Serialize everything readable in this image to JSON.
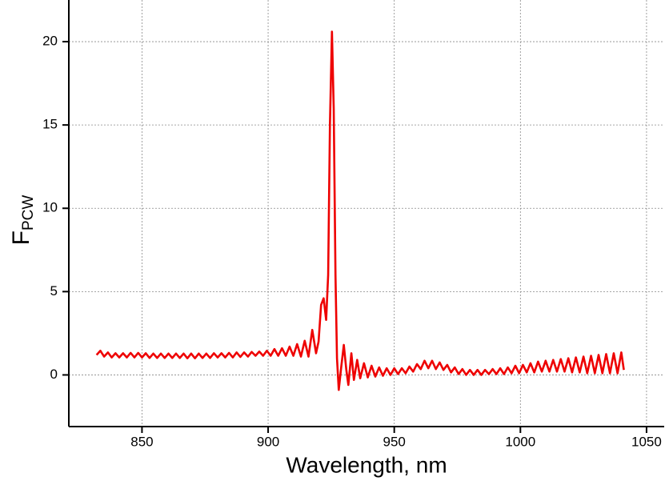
{
  "chart_data": {
    "type": "line",
    "xlabel": "Wavelength, nm",
    "ylabel": "F",
    "ylabel_sub": "PCW",
    "xlim": [
      821,
      1057
    ],
    "ylim": [
      -3.1,
      22.5
    ],
    "xticks": [
      850,
      900,
      950,
      1000,
      1050
    ],
    "yticks": [
      0,
      5,
      10,
      15,
      20
    ],
    "grid": true,
    "series": [
      {
        "color": "#ee0000",
        "x": [
          832,
          833.5,
          835,
          836.5,
          838,
          839.5,
          841,
          842.5,
          844,
          845.5,
          847,
          848.5,
          850,
          851.5,
          853,
          854.5,
          856,
          857.5,
          859,
          860.5,
          862,
          863.5,
          865,
          866.5,
          868,
          869.5,
          871,
          872.5,
          874,
          875.5,
          877,
          878.5,
          880,
          881.5,
          883,
          884.5,
          886,
          887.5,
          889,
          890.5,
          892,
          893.5,
          895,
          896.5,
          898,
          899.5,
          901,
          902.5,
          904,
          905.5,
          907,
          908.5,
          910,
          911.5,
          913,
          914.5,
          916,
          917.5,
          919,
          920,
          921,
          922,
          923,
          923.8,
          924.5,
          925.3,
          926,
          926.7,
          927.3,
          928,
          929,
          930,
          931,
          931.8,
          933,
          934,
          935.3,
          936.5,
          938,
          939.5,
          941,
          942.5,
          944,
          945.5,
          947,
          948.5,
          950,
          951.5,
          953,
          954.5,
          956,
          957.5,
          959,
          960.5,
          962,
          963.5,
          965,
          966.5,
          968,
          969.5,
          971,
          972.5,
          974,
          975.5,
          977,
          978.5,
          980,
          981.5,
          983,
          984.5,
          986,
          987.5,
          989,
          990.5,
          992,
          993.5,
          995,
          996.5,
          998,
          999.5,
          1001,
          1002.5,
          1004,
          1005.5,
          1007,
          1008.5,
          1010,
          1011.5,
          1013,
          1014.5,
          1016,
          1017.5,
          1019,
          1020.5,
          1022,
          1023.5,
          1025,
          1026.5,
          1028,
          1029.5,
          1031,
          1032.5,
          1034,
          1035.5,
          1037,
          1038.5,
          1040,
          1041
        ],
        "values": [
          1.2,
          1.45,
          1.1,
          1.35,
          1.05,
          1.3,
          1.05,
          1.3,
          1.05,
          1.32,
          1.05,
          1.32,
          1.05,
          1.3,
          1.02,
          1.28,
          1.02,
          1.28,
          1.02,
          1.28,
          1.02,
          1.28,
          1.02,
          1.28,
          1.0,
          1.28,
          1.0,
          1.28,
          1.02,
          1.28,
          1.02,
          1.3,
          1.05,
          1.3,
          1.05,
          1.32,
          1.05,
          1.35,
          1.08,
          1.35,
          1.1,
          1.38,
          1.15,
          1.4,
          1.15,
          1.45,
          1.15,
          1.55,
          1.15,
          1.6,
          1.15,
          1.7,
          1.15,
          1.85,
          1.1,
          2.05,
          1.1,
          2.7,
          1.3,
          2.0,
          4.2,
          4.6,
          3.3,
          6,
          15,
          20.6,
          16,
          6,
          1,
          -0.9,
          0.5,
          1.8,
          0.3,
          -0.6,
          1.3,
          -0.3,
          0.9,
          -0.2,
          0.7,
          -0.15,
          0.55,
          -0.1,
          0.45,
          -0.05,
          0.4,
          0.0,
          0.4,
          0.05,
          0.4,
          0.1,
          0.5,
          0.2,
          0.65,
          0.35,
          0.85,
          0.4,
          0.85,
          0.35,
          0.75,
          0.3,
          0.6,
          0.15,
          0.45,
          0.05,
          0.35,
          0.0,
          0.3,
          0.0,
          0.3,
          0.0,
          0.3,
          0.05,
          0.35,
          0.05,
          0.4,
          0.05,
          0.45,
          0.1,
          0.55,
          0.1,
          0.6,
          0.15,
          0.7,
          0.15,
          0.8,
          0.2,
          0.85,
          0.2,
          0.9,
          0.2,
          0.95,
          0.2,
          1.0,
          0.15,
          1.05,
          0.15,
          1.1,
          0.1,
          1.15,
          0.1,
          1.2,
          0.1,
          1.25,
          0.1,
          1.3,
          0.1,
          1.35,
          0.3
        ]
      }
    ]
  }
}
